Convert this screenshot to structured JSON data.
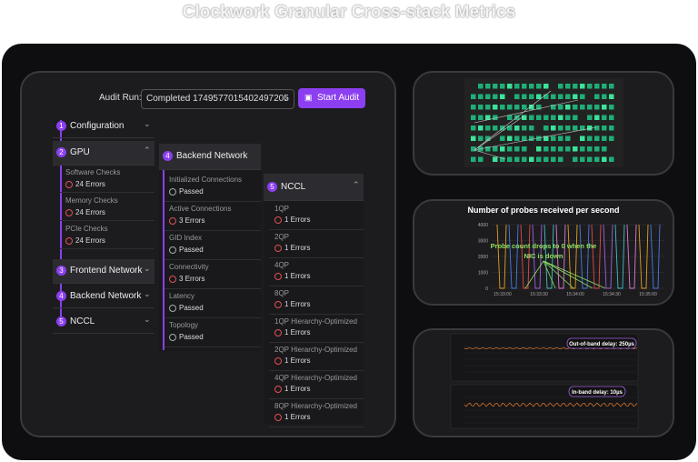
{
  "header": {
    "title": "Clockwork Granular Cross-stack Metrics"
  },
  "audit": {
    "label": "Audit Run:",
    "selected_run": "Completed 1749577015402497205",
    "button": "Start Audit"
  },
  "menu": [
    {
      "number": "1",
      "label": "Configuration"
    },
    {
      "number": "2",
      "label": "GPU",
      "checks": [
        {
          "name": "Software Checks",
          "status": "24 Errors"
        },
        {
          "name": "Memory Checks",
          "status": "24 Errors"
        },
        {
          "name": "PCIe Checks",
          "status": "24 Errors"
        }
      ]
    },
    {
      "number": "3",
      "label": "Frontend Network"
    },
    {
      "number": "4",
      "label": "Backend Network"
    },
    {
      "number": "5",
      "label": "NCCL"
    }
  ],
  "backend_network": {
    "number": "4",
    "label": "Backend Network",
    "checks": [
      {
        "name": "Initialized Connections",
        "status": "Passed"
      },
      {
        "name": "Active Connections",
        "status": "3 Errors"
      },
      {
        "name": "GID Index",
        "status": "Passed"
      },
      {
        "name": "Connectivity",
        "status": "3 Errors"
      },
      {
        "name": "Latency",
        "status": "Passed"
      },
      {
        "name": "Topology",
        "status": "Passed"
      }
    ]
  },
  "nccl": {
    "number": "5",
    "label": "NCCL",
    "checks": [
      {
        "name": "1QP",
        "status": "1 Errors"
      },
      {
        "name": "2QP",
        "status": "1 Errors"
      },
      {
        "name": "4QP",
        "status": "1 Errors"
      },
      {
        "name": "8QP",
        "status": "1 Errors"
      },
      {
        "name": "1QP Hierarchy-Optimized",
        "status": "1 Errors"
      },
      {
        "name": "2QP Hierarchy-Optimized",
        "status": "1 Errors"
      },
      {
        "name": "4QP Hierarchy-Optimized",
        "status": "1 Errors"
      },
      {
        "name": "8QP Hierarchy-Optimized",
        "status": "1 Errors"
      }
    ]
  },
  "probe_chart": {
    "title": "Number of probes received per second",
    "yticks": [
      "4000",
      "3000",
      "2000",
      "1000",
      "0"
    ],
    "xticks": [
      "15:33:00",
      "15:33:30",
      "15:34:00",
      "15:34:30",
      "15:35:00"
    ],
    "annotation": [
      "Probe count drops to 0 when the",
      "NIC is down"
    ]
  },
  "delay_panel": {
    "out_of_band": "Out-of-band delay: 250µs",
    "in_band": "In-band delay: 10µs"
  }
}
